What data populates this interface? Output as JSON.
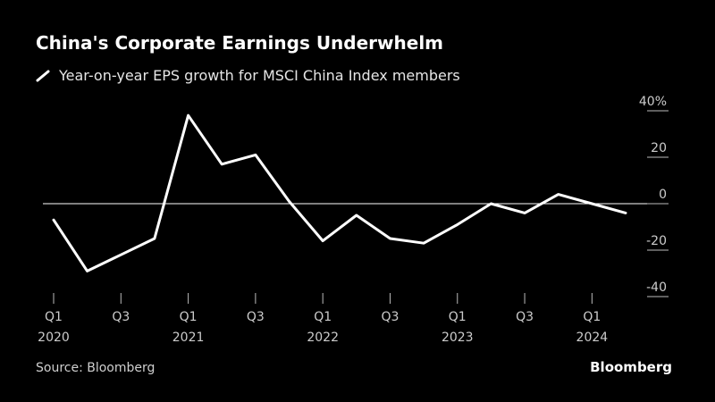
{
  "header": {
    "title": "China's Corporate Earnings Underwhelm",
    "subtitle": "Year-on-year EPS growth for MSCI China Index members"
  },
  "footer": {
    "source": "Source: Bloomberg",
    "brand": "Bloomberg"
  },
  "colors": {
    "background": "#000000",
    "line": "#ffffff",
    "zero_line": "#ffffff",
    "tick": "#cccccc"
  },
  "chart_data": {
    "type": "line",
    "title": "China's Corporate Earnings Underwhelm",
    "subtitle": "Year-on-year EPS growth for MSCI China Index members",
    "x": [
      "Q1 2020",
      "Q2 2020",
      "Q3 2020",
      "Q4 2020",
      "Q1 2021",
      "Q2 2021",
      "Q3 2021",
      "Q4 2021",
      "Q1 2022",
      "Q2 2022",
      "Q3 2022",
      "Q4 2022",
      "Q1 2023",
      "Q2 2023",
      "Q3 2023",
      "Q4 2023",
      "Q1 2024",
      "Q2 2024"
    ],
    "series": [
      {
        "values": [
          -7,
          -29,
          -22,
          -15,
          38,
          17,
          21,
          1,
          -16,
          -5,
          -15,
          -17,
          -9,
          0,
          -4,
          4,
          0,
          -4
        ]
      }
    ],
    "x_tick_labels": [
      {
        "quarter": "Q1",
        "year": "2020",
        "index": 0
      },
      {
        "quarter": "Q3",
        "year": "",
        "index": 2
      },
      {
        "quarter": "Q1",
        "year": "2021",
        "index": 4
      },
      {
        "quarter": "Q3",
        "year": "",
        "index": 6
      },
      {
        "quarter": "Q1",
        "year": "2022",
        "index": 8
      },
      {
        "quarter": "Q3",
        "year": "",
        "index": 10
      },
      {
        "quarter": "Q1",
        "year": "2023",
        "index": 12
      },
      {
        "quarter": "Q3",
        "year": "",
        "index": 14
      },
      {
        "quarter": "Q1",
        "year": "2024",
        "index": 16
      }
    ],
    "y_ticks": [
      {
        "value": 40,
        "label": "40%"
      },
      {
        "value": 20,
        "label": "20"
      },
      {
        "value": 0,
        "label": "0"
      },
      {
        "value": -20,
        "label": "-20"
      },
      {
        "value": -40,
        "label": "-40"
      }
    ],
    "ylim": [
      -40,
      40
    ],
    "y_axis_position": "right",
    "grid": false,
    "legend": "top-left"
  }
}
